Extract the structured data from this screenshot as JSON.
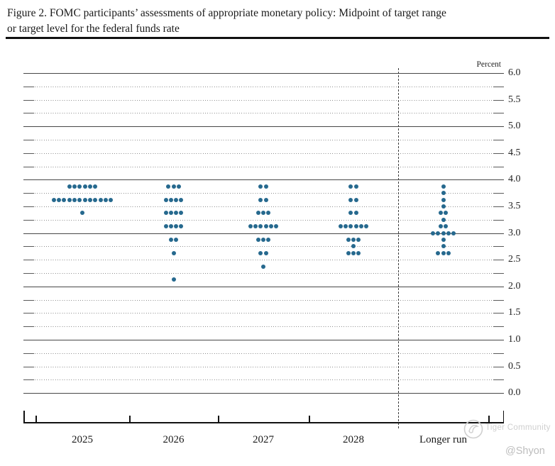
{
  "figure": {
    "title_line1": "Figure 2. FOMC participants’ assessments of appropriate monetary policy: Midpoint of target range",
    "title_line2": "or target level for the federal funds rate"
  },
  "axis": {
    "unit_label": "Percent",
    "x_categories": [
      "2025",
      "2026",
      "2027",
      "2028",
      "Longer run"
    ],
    "y_tick_labels": [
      "6.0",
      "5.5",
      "5.0",
      "4.5",
      "4.0",
      "3.5",
      "3.0",
      "2.5",
      "2.0",
      "1.5",
      "1.0",
      "0.5",
      "0.0"
    ]
  },
  "watermark": {
    "brand": "Tiger Community",
    "handle": "@Shyon"
  },
  "colors": {
    "dot": "#26698E",
    "solid_grid": "#474747",
    "dotted_grid": "#8E8E8E",
    "axis": "#111111",
    "watermark": "#CFCFCF"
  },
  "chart_data": {
    "type": "scatter",
    "title": "FOMC participants’ assessments of appropriate monetary policy: Midpoint of target range or target level for the federal funds rate",
    "ylabel": "Percent",
    "ylim": [
      0.0,
      6.0
    ],
    "y_label_step": 0.5,
    "y_grid_step": 0.25,
    "grid": "solid lines at whole percents, dotted lines at quarter-point increments; dashed vertical separator before Longer run",
    "legend_position": "none",
    "categories": [
      "2025",
      "2026",
      "2027",
      "2028",
      "Longer run"
    ],
    "participants_per_column": 19,
    "series": [
      {
        "name": "2025",
        "dots": [
          {
            "rate": 3.875,
            "count": 6
          },
          {
            "rate": 3.625,
            "count": 12
          },
          {
            "rate": 3.375,
            "count": 1
          }
        ]
      },
      {
        "name": "2026",
        "dots": [
          {
            "rate": 3.875,
            "count": 3
          },
          {
            "rate": 3.625,
            "count": 4
          },
          {
            "rate": 3.375,
            "count": 4
          },
          {
            "rate": 3.125,
            "count": 4
          },
          {
            "rate": 2.875,
            "count": 2
          },
          {
            "rate": 2.625,
            "count": 1
          },
          {
            "rate": 2.125,
            "count": 1
          }
        ]
      },
      {
        "name": "2027",
        "dots": [
          {
            "rate": 3.875,
            "count": 2
          },
          {
            "rate": 3.625,
            "count": 2
          },
          {
            "rate": 3.375,
            "count": 3
          },
          {
            "rate": 3.125,
            "count": 6
          },
          {
            "rate": 2.875,
            "count": 3
          },
          {
            "rate": 2.625,
            "count": 2
          },
          {
            "rate": 2.375,
            "count": 1
          }
        ]
      },
      {
        "name": "2028",
        "dots": [
          {
            "rate": 3.875,
            "count": 2
          },
          {
            "rate": 3.625,
            "count": 2
          },
          {
            "rate": 3.375,
            "count": 2
          },
          {
            "rate": 3.125,
            "count": 6
          },
          {
            "rate": 2.875,
            "count": 3
          },
          {
            "rate": 2.75,
            "count": 1
          },
          {
            "rate": 2.625,
            "count": 3
          }
        ]
      },
      {
        "name": "Longer run",
        "dots": [
          {
            "rate": 3.875,
            "count": 1
          },
          {
            "rate": 3.75,
            "count": 1
          },
          {
            "rate": 3.625,
            "count": 1
          },
          {
            "rate": 3.5,
            "count": 1
          },
          {
            "rate": 3.375,
            "count": 2
          },
          {
            "rate": 3.25,
            "count": 1
          },
          {
            "rate": 3.125,
            "count": 2
          },
          {
            "rate": 3.0,
            "count": 5
          },
          {
            "rate": 2.875,
            "count": 1
          },
          {
            "rate": 2.75,
            "count": 1
          },
          {
            "rate": 2.625,
            "count": 3
          }
        ]
      }
    ]
  }
}
